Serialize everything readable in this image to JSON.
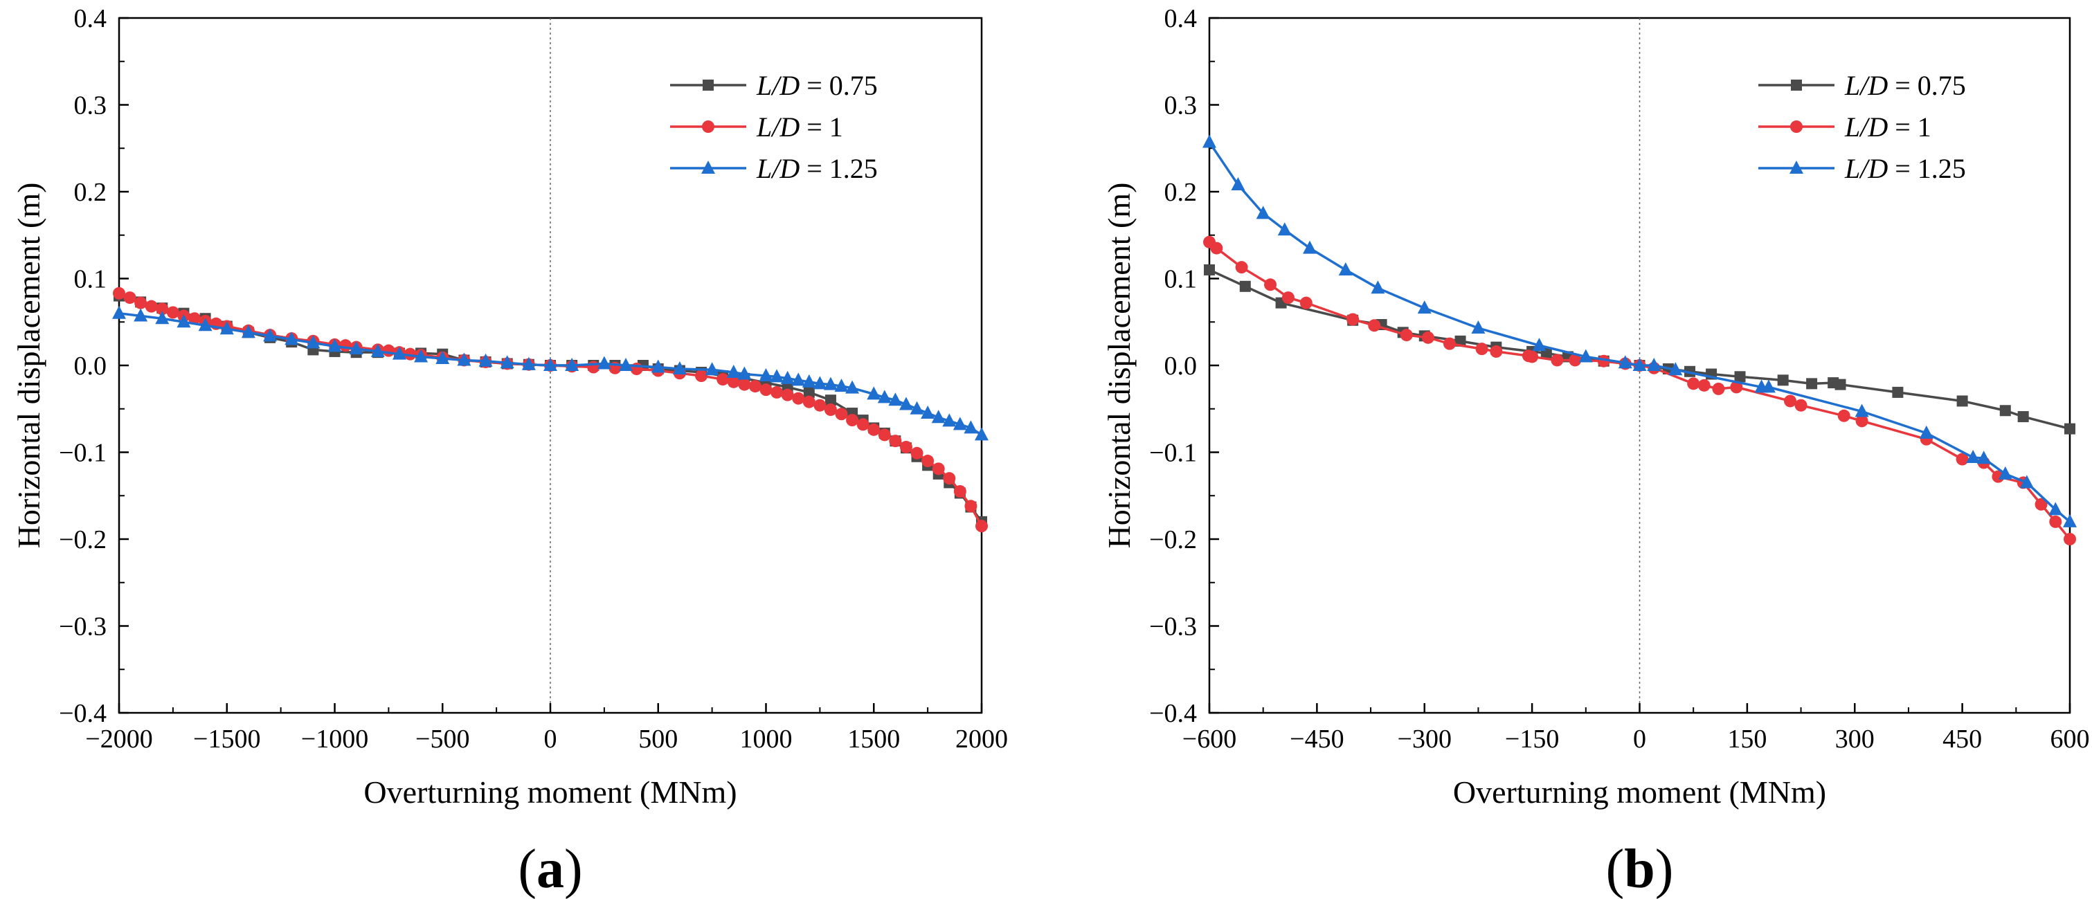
{
  "chart_data": [
    {
      "type": "line",
      "panel_label": "a",
      "xlabel": "Overturning moment (MNm)",
      "ylabel": "Horizontal displacement (m)",
      "xlim": [
        -2000,
        2000
      ],
      "ylim": [
        -0.4,
        0.4
      ],
      "x_ticks": [
        -2000,
        -1500,
        -1000,
        -500,
        0,
        500,
        1000,
        1500,
        2000
      ],
      "x_tick_labels": [
        "−2000",
        "−1500",
        "−1000",
        "−500",
        "0",
        "500",
        "1000",
        "1500",
        "2000"
      ],
      "y_ticks": [
        -0.4,
        -0.3,
        -0.2,
        -0.1,
        0.0,
        0.1,
        0.2,
        0.3,
        0.4
      ],
      "y_tick_labels": [
        "−0.4",
        "−0.3",
        "−0.2",
        "−0.1",
        "0.0",
        "0.1",
        "0.2",
        "0.3",
        "0.4"
      ],
      "zero_reference_line": true,
      "legend_position": "top-right",
      "series": [
        {
          "name": "L/D = 0.75",
          "label_var": "L/D",
          "label_value": "= 0.75",
          "color": "#4a4a4a",
          "marker": "square",
          "x": [
            -2000,
            -1900,
            -1800,
            -1700,
            -1600,
            -1500,
            -1400,
            -1300,
            -1200,
            -1100,
            -1000,
            -900,
            -800,
            -700,
            -600,
            -500,
            -400,
            -300,
            -200,
            -100,
            0,
            100,
            200,
            300,
            430,
            500,
            600,
            700,
            800,
            900,
            1000,
            1100,
            1200,
            1300,
            1400,
            1450,
            1500,
            1550,
            1600,
            1650,
            1700,
            1750,
            1800,
            1850,
            1900,
            1950,
            2000
          ],
          "y": [
            0.08,
            0.073,
            0.066,
            0.06,
            0.054,
            0.045,
            0.038,
            0.032,
            0.027,
            0.018,
            0.016,
            0.015,
            0.015,
            0.014,
            0.014,
            0.013,
            0.006,
            0.004,
            0.002,
            0.001,
            0.0,
            0.0,
            0.0,
            0.0,
            0.0,
            -0.004,
            -0.006,
            -0.008,
            -0.012,
            -0.015,
            -0.02,
            -0.025,
            -0.031,
            -0.04,
            -0.055,
            -0.063,
            -0.072,
            -0.078,
            -0.087,
            -0.095,
            -0.105,
            -0.115,
            -0.125,
            -0.135,
            -0.147,
            -0.163,
            -0.18
          ]
        },
        {
          "name": "L/D = 1",
          "label_var": "L/D",
          "label_value": "= 1",
          "color": "#e8383d",
          "marker": "circle",
          "x": [
            -2000,
            -1950,
            -1900,
            -1850,
            -1800,
            -1750,
            -1700,
            -1650,
            -1600,
            -1550,
            -1500,
            -1400,
            -1300,
            -1200,
            -1100,
            -1000,
            -950,
            -900,
            -800,
            -750,
            -700,
            -650,
            -600,
            -500,
            -400,
            -300,
            -200,
            -100,
            0,
            100,
            200,
            300,
            400,
            500,
            600,
            700,
            800,
            850,
            900,
            950,
            1000,
            1050,
            1100,
            1150,
            1200,
            1250,
            1300,
            1350,
            1400,
            1450,
            1500,
            1550,
            1600,
            1650,
            1700,
            1750,
            1800,
            1850,
            1900,
            1950,
            2000
          ],
          "y": [
            0.083,
            0.078,
            0.072,
            0.068,
            0.065,
            0.061,
            0.057,
            0.054,
            0.051,
            0.048,
            0.045,
            0.04,
            0.035,
            0.031,
            0.028,
            0.024,
            0.023,
            0.021,
            0.018,
            0.017,
            0.015,
            0.013,
            0.012,
            0.009,
            0.006,
            0.004,
            0.002,
            0.001,
            0.0,
            -0.001,
            -0.002,
            -0.003,
            -0.004,
            -0.006,
            -0.009,
            -0.012,
            -0.016,
            -0.019,
            -0.022,
            -0.024,
            -0.028,
            -0.031,
            -0.034,
            -0.038,
            -0.042,
            -0.046,
            -0.051,
            -0.056,
            -0.063,
            -0.068,
            -0.074,
            -0.08,
            -0.087,
            -0.094,
            -0.101,
            -0.11,
            -0.119,
            -0.13,
            -0.145,
            -0.162,
            -0.185
          ]
        },
        {
          "name": "L/D = 1.25",
          "label_var": "L/D",
          "label_value": "= 1.25",
          "color": "#1f6fd1",
          "marker": "triangle",
          "x": [
            -2000,
            -1900,
            -1800,
            -1700,
            -1600,
            -1500,
            -1400,
            -1300,
            -1200,
            -1100,
            -1000,
            -900,
            -800,
            -700,
            -600,
            -500,
            -400,
            -300,
            -200,
            -100,
            0,
            100,
            250,
            350,
            500,
            600,
            750,
            850,
            900,
            1000,
            1050,
            1100,
            1150,
            1200,
            1250,
            1300,
            1350,
            1400,
            1500,
            1550,
            1600,
            1650,
            1700,
            1750,
            1800,
            1850,
            1900,
            1950,
            2000
          ],
          "y": [
            0.06,
            0.057,
            0.054,
            0.05,
            0.046,
            0.042,
            0.038,
            0.034,
            0.03,
            0.026,
            0.022,
            0.019,
            0.016,
            0.013,
            0.01,
            0.008,
            0.006,
            0.005,
            0.003,
            0.001,
            0.0,
            0.0,
            0.002,
            0.0,
            -0.002,
            -0.004,
            -0.005,
            -0.008,
            -0.01,
            -0.012,
            -0.013,
            -0.015,
            -0.017,
            -0.019,
            -0.021,
            -0.022,
            -0.024,
            -0.026,
            -0.033,
            -0.037,
            -0.04,
            -0.045,
            -0.05,
            -0.055,
            -0.06,
            -0.064,
            -0.068,
            -0.072,
            -0.08
          ]
        }
      ]
    },
    {
      "type": "line",
      "panel_label": "b",
      "xlabel": "Overturning moment (MNm)",
      "ylabel": "Horizontal displacement (m)",
      "xlim": [
        -600,
        600
      ],
      "ylim": [
        -0.4,
        0.4
      ],
      "x_ticks": [
        -600,
        -450,
        -300,
        -150,
        0,
        150,
        300,
        450,
        600
      ],
      "x_tick_labels": [
        "−600",
        "−450",
        "−300",
        "−150",
        "0",
        "150",
        "300",
        "450",
        "600"
      ],
      "y_ticks": [
        -0.4,
        -0.3,
        -0.2,
        -0.1,
        0.0,
        0.1,
        0.2,
        0.3,
        0.4
      ],
      "y_tick_labels": [
        "−0.4",
        "−0.3",
        "−0.2",
        "−0.1",
        "0.0",
        "0.1",
        "0.2",
        "0.3",
        "0.4"
      ],
      "zero_reference_line": true,
      "legend_position": "top-right",
      "series": [
        {
          "name": "L/D = 0.75",
          "label_var": "L/D",
          "label_value": "= 0.75",
          "color": "#4a4a4a",
          "marker": "square",
          "x": [
            -600,
            -550,
            -500,
            -400,
            -360,
            -330,
            -300,
            -250,
            -200,
            -150,
            -130,
            -100,
            -50,
            0,
            40,
            70,
            100,
            140,
            200,
            240,
            270,
            280,
            360,
            450,
            510,
            535,
            600
          ],
          "y": [
            0.11,
            0.091,
            0.072,
            0.052,
            0.047,
            0.038,
            0.034,
            0.028,
            0.021,
            0.016,
            0.014,
            0.01,
            0.005,
            0.0,
            -0.004,
            -0.007,
            -0.01,
            -0.013,
            -0.017,
            -0.021,
            -0.02,
            -0.022,
            -0.031,
            -0.041,
            -0.052,
            -0.059,
            -0.073
          ]
        },
        {
          "name": "L/D = 1",
          "label_var": "L/D",
          "label_value": "= 1",
          "color": "#e8383d",
          "marker": "circle",
          "x": [
            -600,
            -590,
            -555,
            -515,
            -490,
            -465,
            -400,
            -370,
            -325,
            -295,
            -265,
            -220,
            -200,
            -155,
            -150,
            -115,
            -90,
            -50,
            -20,
            0,
            20,
            75,
            90,
            110,
            135,
            210,
            225,
            285,
            310,
            400,
            450,
            480,
            500,
            535,
            560,
            580,
            600
          ],
          "y": [
            0.142,
            0.135,
            0.113,
            0.093,
            0.078,
            0.072,
            0.053,
            0.046,
            0.035,
            0.032,
            0.025,
            0.019,
            0.016,
            0.011,
            0.01,
            0.006,
            0.006,
            0.005,
            0.002,
            0.0,
            -0.003,
            -0.021,
            -0.023,
            -0.027,
            -0.025,
            -0.041,
            -0.046,
            -0.058,
            -0.064,
            -0.085,
            -0.108,
            -0.112,
            -0.128,
            -0.135,
            -0.16,
            -0.18,
            -0.2
          ]
        },
        {
          "name": "L/D = 1.25",
          "label_var": "L/D",
          "label_value": "= 1.25",
          "color": "#1f6fd1",
          "marker": "triangle",
          "x": [
            -600,
            -560,
            -525,
            -495,
            -460,
            -410,
            -365,
            -300,
            -225,
            -140,
            -75,
            -20,
            0,
            20,
            50,
            170,
            180,
            310,
            400,
            465,
            480,
            510,
            540,
            580,
            600
          ],
          "y": [
            0.257,
            0.208,
            0.175,
            0.156,
            0.135,
            0.11,
            0.089,
            0.066,
            0.043,
            0.023,
            0.01,
            0.003,
            0.0,
            0.0,
            -0.005,
            -0.025,
            -0.025,
            -0.053,
            -0.078,
            -0.106,
            -0.107,
            -0.125,
            -0.135,
            -0.166,
            -0.18
          ]
        }
      ]
    }
  ]
}
